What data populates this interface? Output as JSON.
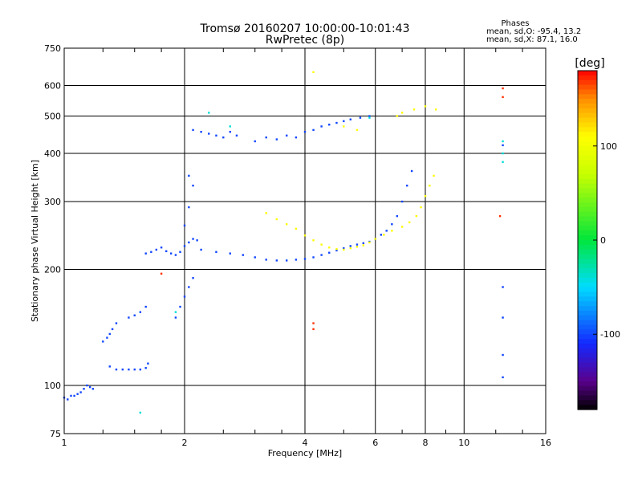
{
  "chart_data": {
    "type": "scatter",
    "title_line1": "Tromsø 20160207 10:00:00-10:01:43",
    "title_line2": "RwPretec (8p)",
    "stats": {
      "heading": "Phases",
      "line_o": "mean, sd,O: -95.4, 13.2",
      "line_x": "mean, sd,X: 87.1, 16.0"
    },
    "xlabel": "Frequency [MHz]",
    "ylabel": "Stationary phase Virtual Height [km]",
    "x_scale": "log2",
    "y_scale": "log",
    "xlim": [
      1,
      16
    ],
    "ylim": [
      75,
      750
    ],
    "x_ticks": [
      1,
      2,
      4,
      6,
      8,
      10,
      16
    ],
    "x_tick_labels": [
      "1",
      "2",
      "4",
      "6",
      "8",
      "10",
      "16"
    ],
    "y_ticks": [
      75,
      100,
      200,
      300,
      400,
      500,
      600,
      750
    ],
    "y_tick_labels": [
      "75",
      "100",
      "200",
      "300",
      "400",
      "500",
      "600",
      "750"
    ],
    "grid": true,
    "colorbar": {
      "label": "[deg]",
      "range": [
        -180,
        180
      ],
      "ticks": [
        100,
        0,
        -100
      ],
      "tick_labels": [
        "100",
        "0",
        "-100"
      ]
    },
    "colors": {
      "o_mode": "#1f3cff",
      "x_mode": "#ffff00",
      "noise_orange": "#ff8000",
      "noise_cyan": "#00c8ff"
    },
    "series": [
      {
        "phase": -100,
        "points": [
          [
            1.0,
            93
          ],
          [
            1.02,
            92
          ],
          [
            1.04,
            94
          ],
          [
            1.06,
            94
          ],
          [
            1.08,
            95
          ],
          [
            1.1,
            96
          ],
          [
            1.12,
            98
          ],
          [
            1.14,
            100
          ],
          [
            1.16,
            99
          ],
          [
            1.18,
            98
          ],
          [
            1.25,
            130
          ],
          [
            1.28,
            133
          ],
          [
            1.3,
            136
          ],
          [
            1.32,
            140
          ],
          [
            1.35,
            145
          ],
          [
            1.3,
            112
          ],
          [
            1.35,
            110
          ],
          [
            1.4,
            110
          ],
          [
            1.45,
            110
          ],
          [
            1.5,
            110
          ],
          [
            1.55,
            110
          ],
          [
            1.6,
            111
          ],
          [
            1.62,
            114
          ],
          [
            1.45,
            150
          ],
          [
            1.5,
            152
          ],
          [
            1.55,
            155
          ],
          [
            1.6,
            160
          ],
          [
            1.6,
            220
          ],
          [
            1.65,
            222
          ],
          [
            1.7,
            225
          ],
          [
            1.75,
            228
          ],
          [
            1.8,
            223
          ],
          [
            1.85,
            220
          ],
          [
            1.9,
            218
          ],
          [
            1.95,
            222
          ],
          [
            2.0,
            230
          ],
          [
            2.05,
            235
          ],
          [
            2.1,
            240
          ],
          [
            2.15,
            238
          ],
          [
            1.9,
            150
          ],
          [
            1.95,
            160
          ],
          [
            2.0,
            170
          ],
          [
            2.05,
            180
          ],
          [
            2.1,
            190
          ],
          [
            2.0,
            260
          ],
          [
            2.05,
            290
          ],
          [
            2.1,
            330
          ],
          [
            2.05,
            350
          ],
          [
            2.2,
            225
          ],
          [
            2.4,
            222
          ],
          [
            2.6,
            220
          ],
          [
            2.8,
            218
          ],
          [
            3.0,
            215
          ],
          [
            3.2,
            212
          ],
          [
            3.4,
            211
          ],
          [
            3.6,
            211
          ],
          [
            3.8,
            212
          ],
          [
            4.0,
            213
          ],
          [
            4.2,
            215
          ],
          [
            4.4,
            218
          ],
          [
            4.6,
            221
          ],
          [
            4.8,
            224
          ],
          [
            5.0,
            227
          ],
          [
            5.2,
            230
          ],
          [
            5.4,
            232
          ],
          [
            5.6,
            234
          ],
          [
            5.8,
            236
          ],
          [
            6.0,
            240
          ],
          [
            6.2,
            246
          ],
          [
            6.4,
            252
          ],
          [
            6.6,
            262
          ],
          [
            6.8,
            275
          ],
          [
            7.0,
            300
          ],
          [
            7.2,
            330
          ],
          [
            7.4,
            360
          ],
          [
            2.1,
            460
          ],
          [
            2.2,
            455
          ],
          [
            2.3,
            450
          ],
          [
            2.4,
            445
          ],
          [
            2.5,
            440
          ],
          [
            2.6,
            455
          ],
          [
            2.7,
            445
          ],
          [
            3.0,
            430
          ],
          [
            3.2,
            440
          ],
          [
            3.4,
            435
          ],
          [
            3.6,
            445
          ],
          [
            3.8,
            440
          ],
          [
            4.0,
            455
          ],
          [
            4.2,
            460
          ],
          [
            4.4,
            470
          ],
          [
            4.6,
            475
          ],
          [
            4.8,
            480
          ],
          [
            5.0,
            485
          ],
          [
            5.2,
            490
          ],
          [
            5.5,
            495
          ],
          [
            5.8,
            500
          ],
          [
            12.5,
            105
          ],
          [
            12.5,
            120
          ],
          [
            12.5,
            150
          ],
          [
            12.5,
            180
          ],
          [
            12.5,
            420
          ]
        ]
      },
      {
        "phase": 110,
        "points": [
          [
            3.2,
            280
          ],
          [
            3.4,
            270
          ],
          [
            3.6,
            262
          ],
          [
            3.8,
            255
          ],
          [
            4.0,
            245
          ],
          [
            4.2,
            238
          ],
          [
            4.4,
            232
          ],
          [
            4.6,
            228
          ],
          [
            4.8,
            226
          ],
          [
            5.0,
            225
          ],
          [
            5.2,
            227
          ],
          [
            5.4,
            229
          ],
          [
            5.6,
            231
          ],
          [
            5.8,
            235
          ],
          [
            6.0,
            240
          ],
          [
            6.3,
            246
          ],
          [
            6.6,
            252
          ],
          [
            7.0,
            258
          ],
          [
            7.3,
            265
          ],
          [
            7.6,
            275
          ],
          [
            7.8,
            290
          ],
          [
            8.0,
            310
          ],
          [
            8.2,
            330
          ],
          [
            8.4,
            350
          ],
          [
            4.2,
            650
          ],
          [
            6.8,
            500
          ],
          [
            7.0,
            510
          ],
          [
            7.5,
            520
          ],
          [
            8.0,
            530
          ],
          [
            8.5,
            520
          ],
          [
            5.0,
            470
          ],
          [
            5.4,
            460
          ]
        ]
      },
      {
        "phase": 170,
        "points": [
          [
            4.2,
            140
          ],
          [
            4.2,
            145
          ],
          [
            12.3,
            275
          ],
          [
            12.5,
            560
          ],
          [
            12.5,
            590
          ],
          [
            1.75,
            195
          ]
        ]
      },
      {
        "phase": -40,
        "points": [
          [
            1.55,
            85
          ],
          [
            1.9,
            155
          ],
          [
            2.3,
            510
          ],
          [
            2.6,
            470
          ],
          [
            5.8,
            495
          ],
          [
            12.5,
            430
          ],
          [
            12.5,
            400
          ],
          [
            12.5,
            380
          ]
        ]
      }
    ]
  }
}
